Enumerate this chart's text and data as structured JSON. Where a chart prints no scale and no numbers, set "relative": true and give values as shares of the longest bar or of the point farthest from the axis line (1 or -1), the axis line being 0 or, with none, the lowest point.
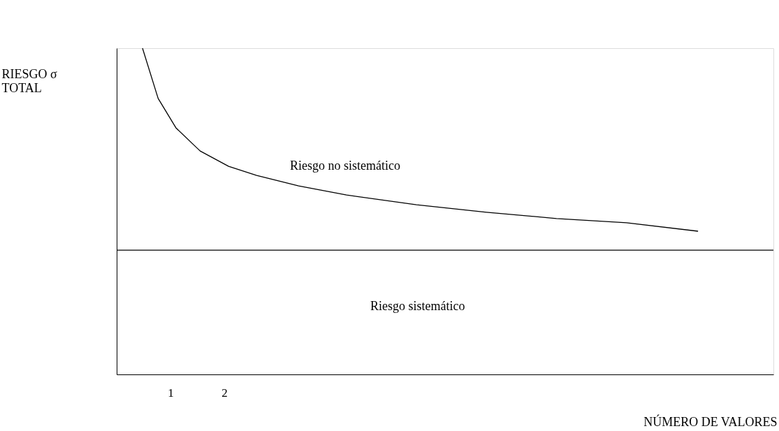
{
  "chart_data": {
    "type": "line",
    "relative": true,
    "xlabel": "NÚMERO DE VALORES",
    "ylabel": "RIESGO σ\nTOTAL",
    "xlim": [
      0,
      12.2
    ],
    "xticks": [
      1,
      2
    ],
    "grid": false,
    "marker": "none",
    "line_style": "solid",
    "series": [
      {
        "color": "#000000",
        "x": [
          0.48,
          0.77,
          1.1,
          1.55,
          2.08,
          2.6,
          3.38,
          4.27,
          5.57,
          6.87,
          8.17,
          9.47,
          10.8
        ],
        "values": [
          1,
          0.846,
          0.756,
          0.685,
          0.638,
          0.61,
          0.578,
          0.55,
          0.52,
          0.497,
          0.478,
          0.465,
          0.439
        ]
      }
    ],
    "ref_lines": [
      {
        "axis": "y",
        "value": 0.381,
        "color": "#000000"
      }
    ],
    "annotations": [
      "Riesgo no sistemático",
      "Riesgo sistemático"
    ]
  }
}
